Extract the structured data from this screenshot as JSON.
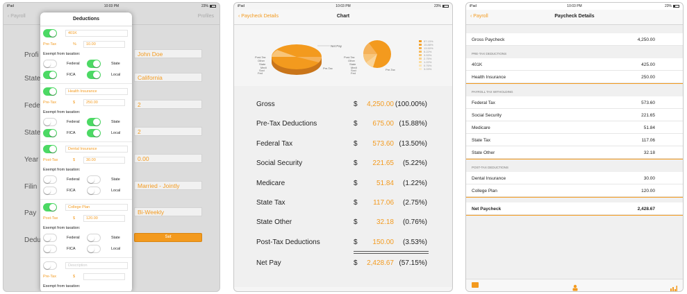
{
  "colors": {
    "accent": "#f39a1e",
    "toggle_on": "#4cd964"
  },
  "status_bar": {
    "device": "iPad",
    "time": "10:03 PM",
    "battery": "23%"
  },
  "screen1": {
    "nav": {
      "back": "Payroll",
      "right": "Profiles"
    },
    "form_labels": [
      "Profi",
      "State",
      "Fede",
      "State",
      "Year",
      "Filin",
      "Pay",
      "Dedu"
    ],
    "form_values": [
      "John Doe",
      "California",
      "2",
      "2",
      "0.00",
      "Married - Jointly",
      "Bi-Weekly"
    ],
    "year_prefix": "$",
    "set_button": "Set",
    "popover": {
      "title": "Deductions",
      "exempt_label": "Exempt from taxation:",
      "federal": "Federal",
      "state": "State",
      "fica": "FICA",
      "local": "Local",
      "items": [
        {
          "name": "401K",
          "type": "Pre-Tax",
          "symbol": "%",
          "value": "10.00"
        },
        {
          "name": "Health Insurance",
          "type": "Pre-Tax",
          "symbol": "$",
          "value": "250.00"
        },
        {
          "name": "Dental Insurance",
          "type": "Post-Tax",
          "symbol": "$",
          "value": "30.00"
        },
        {
          "name": "College Plan",
          "type": "Post-Tax",
          "symbol": "$",
          "value": "120.00"
        },
        {
          "name": "Description",
          "type": "Pre-Tax",
          "symbol": "$",
          "value": ""
        }
      ]
    }
  },
  "screen2": {
    "nav": {
      "back": "Paycheck Details",
      "title": "Chart"
    },
    "pie1_labels": [
      "Net Pay",
      "Post-Tax",
      "Other",
      "State",
      "Medi",
      "Soci",
      "Fed",
      "Pre-Tax"
    ],
    "pie2_labels": [
      "Post-Tax",
      "Other",
      "State",
      "Medi",
      "Soci",
      "Fed",
      "Pre-Tax"
    ],
    "legend": [
      "57.15%",
      "15.88%",
      "13.50%",
      "5.22%",
      "3.53%",
      "2.75%",
      "1.22%",
      "0.76%",
      "3.03%"
    ],
    "rows": [
      {
        "label": "Gross",
        "amount": "4,250.00",
        "pct": "(100.00%)"
      },
      {
        "label": "Pre-Tax Deductions",
        "amount": "675.00",
        "pct": "(15.88%)"
      },
      {
        "label": "Federal Tax",
        "amount": "573.60",
        "pct": "(13.50%)"
      },
      {
        "label": "Social Security",
        "amount": "221.65",
        "pct": "(5.22%)"
      },
      {
        "label": "Medicare",
        "amount": "51.84",
        "pct": "(1.22%)"
      },
      {
        "label": "State Tax",
        "amount": "117.06",
        "pct": "(2.75%)"
      },
      {
        "label": "State Other",
        "amount": "32.18",
        "pct": "(0.76%)"
      },
      {
        "label": "Post-Tax Deductions",
        "amount": "150.00",
        "pct": "(3.53%)"
      },
      {
        "label": "Net Pay",
        "amount": "2,428.67",
        "pct": "(57.15%)"
      }
    ],
    "dollar": "$",
    "rule": "==================="
  },
  "screen3": {
    "nav": {
      "back": "Payroll",
      "title": "Paycheck Details"
    },
    "gross": {
      "label": "Gross Paycheck",
      "value": "4,250.00"
    },
    "pretax_header": "PRE-TAX DEDUCTIONS",
    "pretax": [
      {
        "label": "401K",
        "value": "425.00"
      },
      {
        "label": "Health Insurance",
        "value": "250.00"
      }
    ],
    "payroll_header": "PAYROLL TAX WITHOLDING",
    "payroll": [
      {
        "label": "Federal Tax",
        "value": "573.60"
      },
      {
        "label": "Social Security",
        "value": "221.65"
      },
      {
        "label": "Medicare",
        "value": "51.84"
      },
      {
        "label": "State Tax",
        "value": "117.06"
      },
      {
        "label": "State Other",
        "value": "32.18"
      }
    ],
    "posttax_header": "POST-TAX DEDUCTIONS",
    "posttax": [
      {
        "label": "Dental Insurance",
        "value": "30.00"
      },
      {
        "label": "College Plan",
        "value": "120.00"
      }
    ],
    "net": {
      "label": "Net Paycheck",
      "value": "2,428.67"
    },
    "tabs": [
      "wallet-icon",
      "person-icon",
      "bar-chart-icon"
    ]
  }
}
